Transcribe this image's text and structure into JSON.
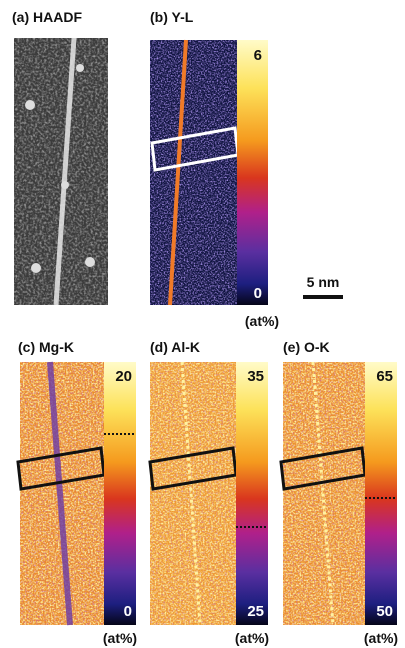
{
  "panels": [
    {
      "label": "(a) HAADF"
    },
    {
      "label": "(b) Y-L",
      "colorbar": {
        "max": 6,
        "min": 0,
        "unit": "(at%)"
      }
    },
    {
      "label": "(c) Mg-K",
      "colorbar": {
        "max": 20,
        "min": 0,
        "unit": "(at%)"
      }
    },
    {
      "label": "(d) Al-K",
      "colorbar": {
        "max": 35,
        "min": 25,
        "unit": "(at%)"
      }
    },
    {
      "label": "(e) O-K",
      "colorbar": {
        "max": 65,
        "min": 50,
        "unit": "(at%)"
      }
    }
  ],
  "scale_bar": "5 nm"
}
